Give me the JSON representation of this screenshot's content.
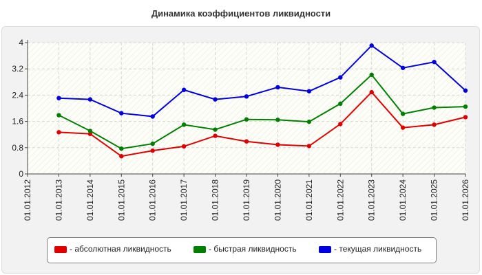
{
  "chart_data": {
    "type": "line",
    "title": "Динамика коэффициентов ликвидности",
    "categories": [
      "01.01.2012",
      "01.01.2013",
      "01.01.2014",
      "01.01.2015",
      "01.01.2016",
      "01.01.2017",
      "01.01.2018",
      "01.01.2019",
      "01.01.2020",
      "01.01.2021",
      "01.01.2022",
      "01.01.2023",
      "01.01.2024",
      "01.01.2025",
      "01.01.2026"
    ],
    "y_ticks": [
      "0",
      "0.8",
      "1.6",
      "2.4",
      "3.2",
      "4"
    ],
    "ylim": [
      0,
      4
    ],
    "grid": true,
    "legend_position": "bottom",
    "series": [
      {
        "name": "- абсолютная ликвидность",
        "color": "#e00000",
        "values": [
          null,
          1.27,
          1.22,
          0.54,
          0.71,
          0.84,
          1.16,
          0.99,
          0.89,
          0.85,
          1.52,
          2.49,
          1.41,
          1.5,
          1.73
        ]
      },
      {
        "name": "- быстрая ликвидность",
        "color": "#008000",
        "values": [
          null,
          1.79,
          1.31,
          0.77,
          0.92,
          1.5,
          1.35,
          1.66,
          1.65,
          1.59,
          2.14,
          3.02,
          1.83,
          2.02,
          2.05
        ]
      },
      {
        "name": "- текущая ликвидность",
        "color": "#0000e0",
        "values": [
          null,
          2.31,
          2.27,
          1.85,
          1.75,
          2.56,
          2.27,
          2.36,
          2.64,
          2.52,
          2.94,
          3.91,
          3.23,
          3.41,
          2.54
        ]
      }
    ]
  }
}
